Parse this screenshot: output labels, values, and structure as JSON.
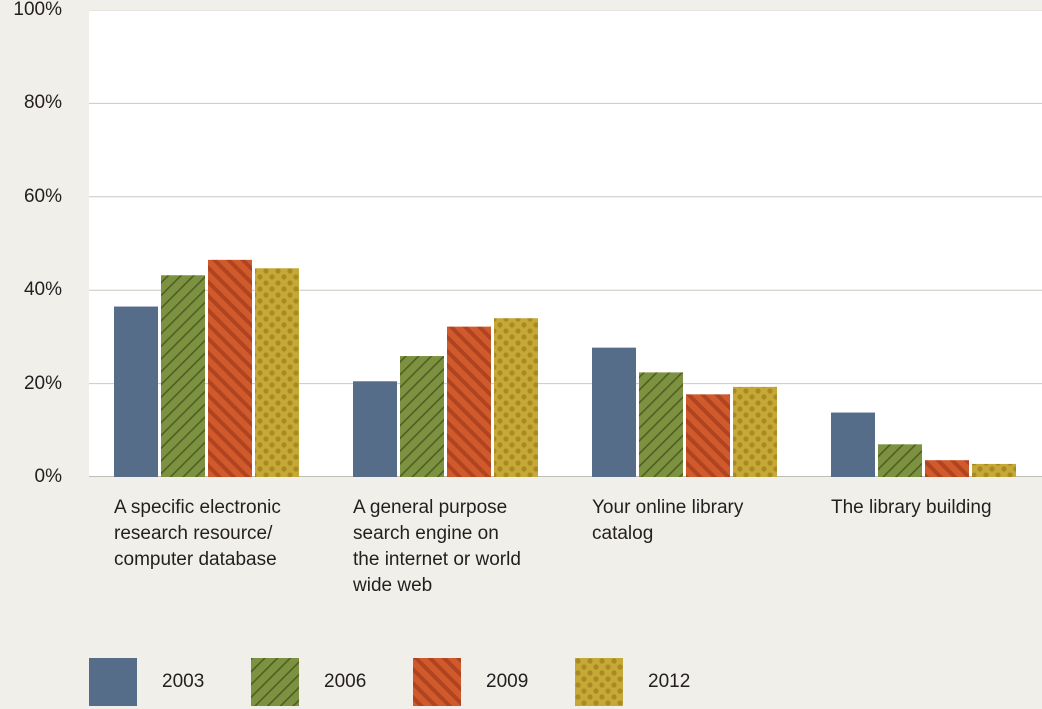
{
  "chart_data": {
    "type": "bar",
    "categories": [
      "A specific electronic research resource/ computer database",
      "A general purpose search engine on the internet or world wide web",
      "Your online library catalog",
      "The library building"
    ],
    "category_lines": [
      [
        "A specific electronic",
        "research resource/",
        "computer database"
      ],
      [
        "A general purpose",
        "search engine on",
        "the internet or world",
        "wide web"
      ],
      [
        "Your online library",
        "catalog"
      ],
      [
        "The library building"
      ]
    ],
    "series": [
      {
        "name": "2003",
        "values": [
          36.5,
          20.5,
          27.7,
          13.8
        ],
        "color": "#566d8a",
        "pattern": "solid"
      },
      {
        "name": "2006",
        "values": [
          43.2,
          25.9,
          22.4,
          7.0
        ],
        "color": "#7d9240",
        "pattern": "diagonal-hatch"
      },
      {
        "name": "2009",
        "values": [
          46.5,
          32.2,
          17.7,
          3.6
        ],
        "color": "#d15a2d",
        "pattern": "diagonal-stripes"
      },
      {
        "name": "2012",
        "values": [
          44.7,
          34.0,
          19.3,
          2.8
        ],
        "color": "#c6a837",
        "pattern": "dots"
      }
    ],
    "yticks": [
      "0%",
      "20%",
      "40%",
      "60%",
      "80%",
      "100%"
    ],
    "ylim": [
      0,
      100
    ],
    "grid": true,
    "legend": "bottom"
  }
}
